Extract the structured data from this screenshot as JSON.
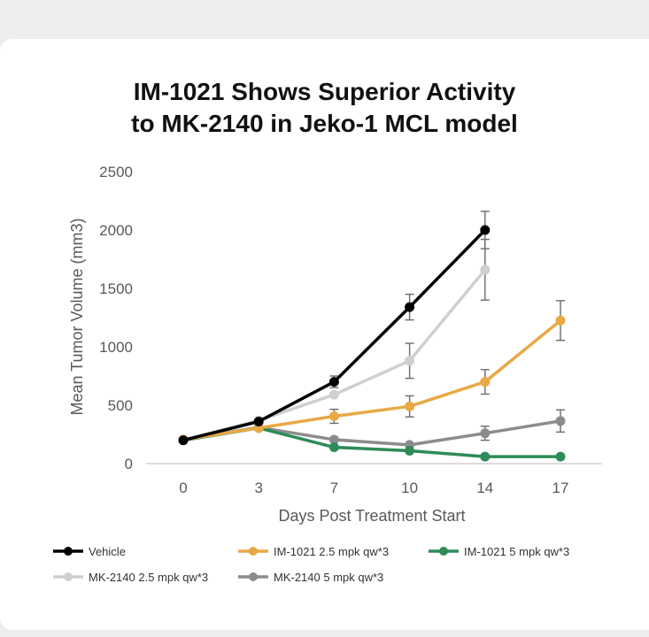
{
  "chart_data": {
    "type": "line",
    "title": [
      "IM-1021 Shows Superior Activity",
      "to MK-2140 in Jeko-1 MCL model"
    ],
    "xlabel": "Days Post Treatment Start",
    "ylabel": "Mean Tumor Volume (mm3)",
    "categories": [
      "0",
      "3",
      "7",
      "10",
      "14",
      "17"
    ],
    "ylim": [
      0,
      2500
    ],
    "yticks": [
      "0",
      "500",
      "1000",
      "1500",
      "2000",
      "2500"
    ],
    "grid": false,
    "legend_position": "bottom",
    "series": [
      {
        "name": "Vehicle",
        "color": "#000000",
        "values": [
          200,
          360,
          700,
          1340,
          2000,
          null
        ],
        "errors": [
          null,
          null,
          50,
          110,
          160,
          null
        ]
      },
      {
        "name": "IM-1021 2.5 mpk qw*3",
        "color": "#e8a945",
        "values": [
          205,
          305,
          405,
          490,
          700,
          1225
        ],
        "errors": [
          null,
          null,
          60,
          90,
          105,
          170
        ]
      },
      {
        "name": "IM-1021 5 mpk qw*3",
        "color": "#2e8b57",
        "values": [
          200,
          305,
          140,
          110,
          60,
          60
        ],
        "errors": [
          null,
          null,
          null,
          null,
          null,
          null
        ]
      },
      {
        "name": "MK-2140 2.5 mpk qw*3",
        "color": "#cfcfcf",
        "values": [
          200,
          370,
          590,
          880,
          1660,
          null
        ],
        "errors": [
          null,
          null,
          null,
          150,
          260,
          null
        ]
      },
      {
        "name": "MK-2140 5 mpk qw*3",
        "color": "#8c8c8c",
        "values": [
          205,
          310,
          205,
          160,
          260,
          365
        ],
        "errors": [
          null,
          null,
          null,
          null,
          60,
          95
        ]
      }
    ]
  }
}
